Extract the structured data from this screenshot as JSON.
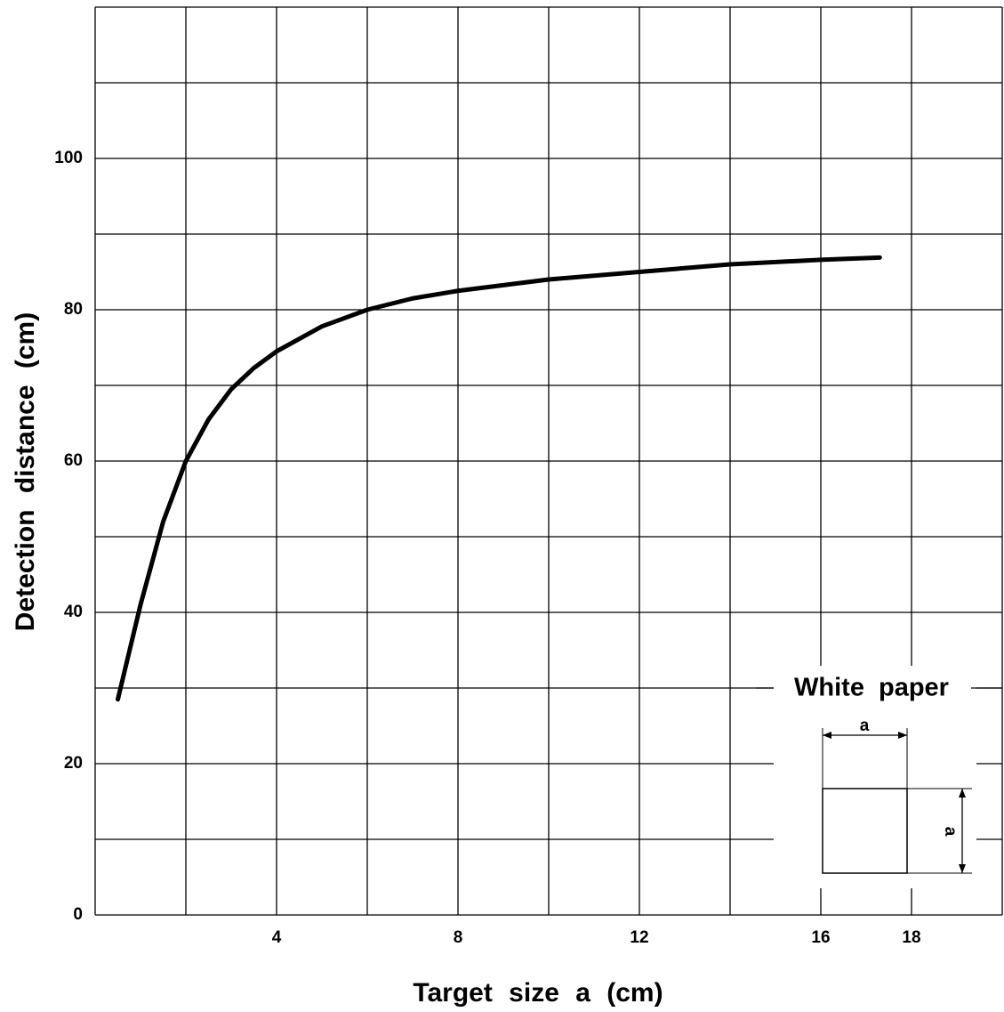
{
  "chart_data": {
    "type": "line",
    "x_label": "Target size a (cm)",
    "y_label": "Detection distance (cm)",
    "x": [
      0.5,
      1.0,
      1.5,
      2.0,
      2.5,
      3.0,
      3.5,
      4.0,
      5.0,
      6.0,
      7.0,
      8.0,
      10.0,
      12.0,
      14.0,
      16.0,
      17.3
    ],
    "series": [
      {
        "name": "White paper",
        "color": "#000000",
        "values": [
          28.5,
          41,
          52,
          60,
          65.5,
          69.5,
          72.3,
          74.5,
          77.8,
          80,
          81.5,
          82.5,
          84,
          85,
          86,
          86.6,
          86.9
        ]
      }
    ],
    "xlim": [
      0,
      20
    ],
    "ylim": [
      0,
      120
    ],
    "xticks": [
      4,
      8,
      12,
      16,
      18
    ],
    "yticks": [
      0,
      20,
      40,
      60,
      80,
      100
    ],
    "x_gridlines": [
      0,
      2,
      4,
      6,
      8,
      10,
      12,
      14,
      16,
      18,
      20
    ],
    "y_gridlines": [
      0,
      10,
      20,
      30,
      40,
      50,
      60,
      70,
      80,
      90,
      100,
      110,
      120
    ],
    "grid": true,
    "annotation": "White paper",
    "inset_dimension_label": "a"
  }
}
